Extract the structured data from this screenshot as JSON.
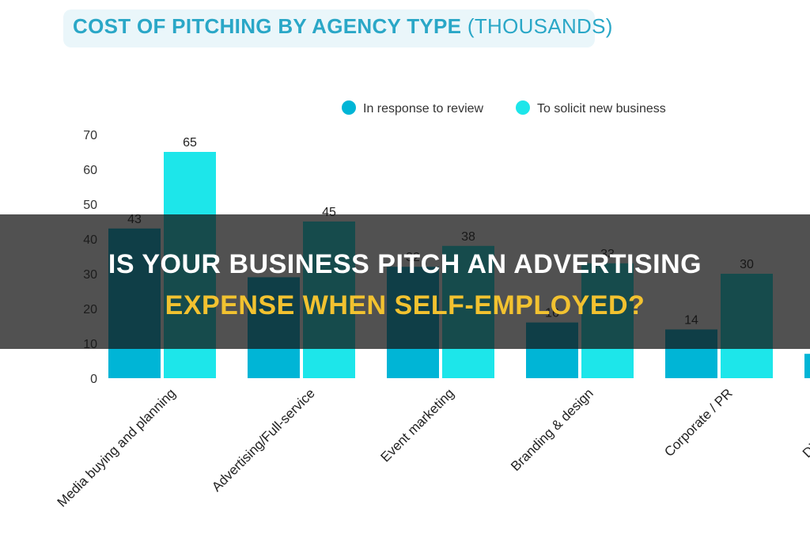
{
  "chart_data": {
    "type": "bar",
    "title": "COST OF PITCHING BY AGENCY TYPE",
    "subtitle": "(THOUSANDS)",
    "categories": [
      "Media buying and planning",
      "Advertising/Full-service",
      "Event marketing",
      "Branding & design",
      "Corporate / PR",
      "Digital/Social/U"
    ],
    "series": [
      {
        "name": "In response to review",
        "values": [
          43,
          29,
          32,
          16,
          14,
          7
        ],
        "color": "#00b5d6"
      },
      {
        "name": "To solicit new business",
        "values": [
          65,
          45,
          38,
          33,
          30,
          null
        ],
        "color": "#1de6ea"
      }
    ],
    "data_labels": [
      [
        "43",
        "",
        "32",
        "16",
        "14",
        ""
      ],
      [
        "65",
        "45",
        "38",
        "33",
        "30",
        ""
      ]
    ],
    "yticks": [
      0,
      10,
      20,
      30,
      40,
      50,
      60,
      70
    ],
    "ylim": [
      0,
      70
    ],
    "grid": false,
    "legend_position": "top-right"
  },
  "headline": {
    "line1": "IS YOUR BUSINESS PITCH AN ADVERTISING",
    "line2": "EXPENSE WHEN SELF-EMPLOYED?"
  }
}
